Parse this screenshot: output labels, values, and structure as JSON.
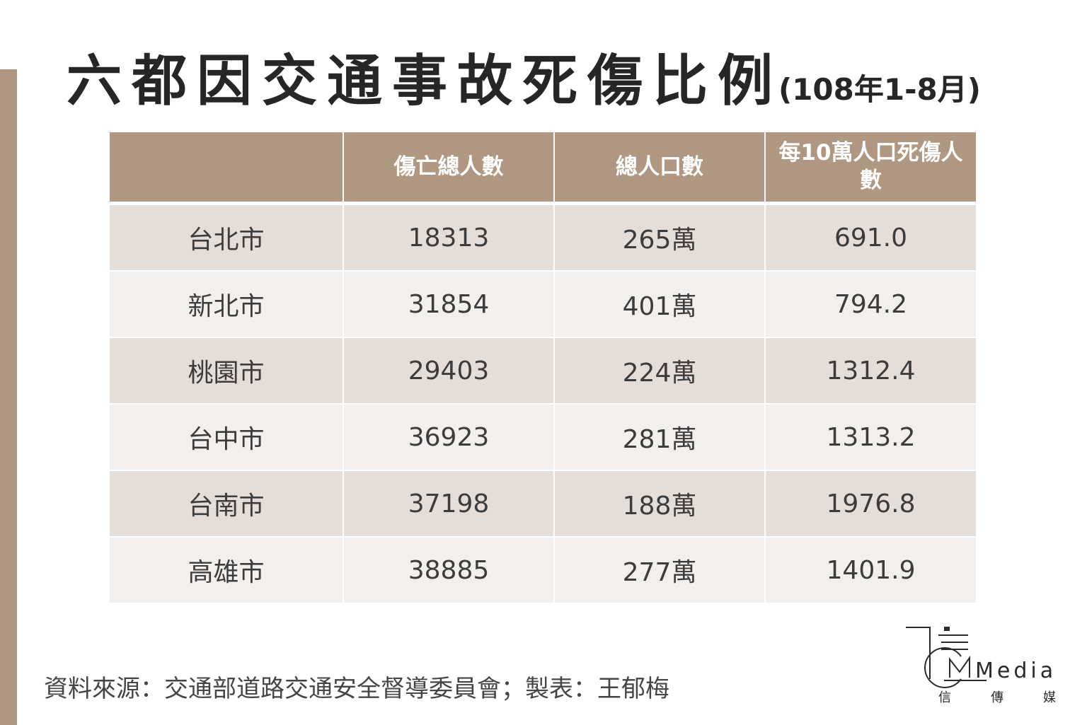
{
  "title": "六都因交通事故死傷比例",
  "subtitle": "(108年1-8月)",
  "columns": [
    "",
    "傷亡總人數",
    "總人口數",
    "每10萬人口死傷人數"
  ],
  "rows": [
    {
      "city": "台北市",
      "casualties": "18313",
      "population": "265萬",
      "rate": "691.0"
    },
    {
      "city": "新北市",
      "casualties": "31854",
      "population": "401萬",
      "rate": "794.2"
    },
    {
      "city": "桃園市",
      "casualties": "29403",
      "population": "224萬",
      "rate": "1312.4"
    },
    {
      "city": "台中市",
      "casualties": "36923",
      "population": "281萬",
      "rate": "1313.2"
    },
    {
      "city": "台南市",
      "casualties": "37198",
      "population": "188萬",
      "rate": "1976.8"
    },
    {
      "city": "高雄市",
      "casualties": "38885",
      "population": "277萬",
      "rate": "1401.9"
    }
  ],
  "source": "資料來源：交通部道路交通安全督導委員會；製表：王郁梅",
  "logo": {
    "text": "Media",
    "chars": [
      "信",
      "傳",
      "媒"
    ]
  },
  "colors": {
    "accent": "#b09782",
    "row_odd": "#e4ddd8",
    "row_even": "#f2efec"
  },
  "chart_data": {
    "type": "table",
    "title": "六都因交通事故死傷比例",
    "subtitle": "(108年1-8月)",
    "columns": [
      "",
      "傷亡總人數",
      "總人口數",
      "每10萬人口死傷人數"
    ],
    "rows": [
      [
        "台北市",
        18313,
        "265萬",
        691.0
      ],
      [
        "新北市",
        31854,
        "401萬",
        794.2
      ],
      [
        "桃園市",
        29403,
        "224萬",
        1312.4
      ],
      [
        "台中市",
        36923,
        "281萬",
        1313.2
      ],
      [
        "台南市",
        37198,
        "188萬",
        1976.8
      ],
      [
        "高雄市",
        38885,
        "277萬",
        1401.9
      ]
    ]
  }
}
